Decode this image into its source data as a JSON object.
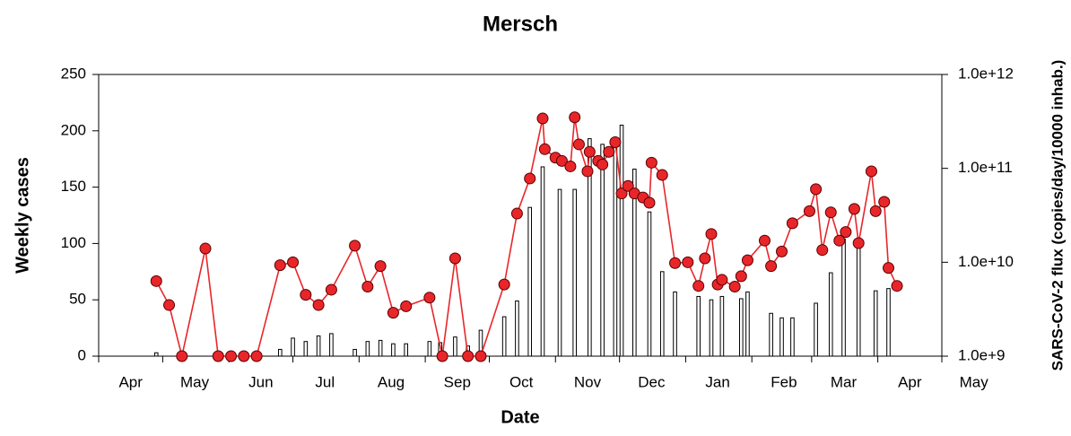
{
  "chart_data": {
    "type": "combo",
    "title": "Mersch",
    "xlabel": "Date",
    "ylabel": "Weekly cases",
    "y2label": "SARS-CoV-2 flux (copies/day/10000 inhab.)",
    "xlim": [
      0,
      395
    ],
    "xticks": [
      {
        "value": 15,
        "label": "Apr"
      },
      {
        "value": 45,
        "label": "May"
      },
      {
        "value": 76,
        "label": "Jun"
      },
      {
        "value": 106,
        "label": "Jul"
      },
      {
        "value": 137,
        "label": "Aug"
      },
      {
        "value": 168,
        "label": "Sep"
      },
      {
        "value": 198,
        "label": "Oct"
      },
      {
        "value": 229,
        "label": "Nov"
      },
      {
        "value": 259,
        "label": "Dec"
      },
      {
        "value": 290,
        "label": "Jan"
      },
      {
        "value": 321,
        "label": "Feb"
      },
      {
        "value": 349,
        "label": "Mar"
      },
      {
        "value": 380,
        "label": "Apr"
      },
      {
        "value": 410,
        "label": "May"
      }
    ],
    "xminorticks": [
      0,
      30,
      61,
      91,
      122,
      153,
      183,
      214,
      244,
      275,
      306,
      334,
      365,
      395
    ],
    "ylim": [
      0,
      250
    ],
    "yticks": [
      0,
      50,
      100,
      150,
      200,
      250
    ],
    "y2lim": [
      1000000000.0,
      1000000000000.0
    ],
    "y2scale": "log",
    "y2ticks": [
      {
        "value": 1000000000.0,
        "label": "1.0e+9"
      },
      {
        "value": 10000000000.0,
        "label": "1.0e+10"
      },
      {
        "value": 100000000000.0,
        "label": "1.0e+11"
      },
      {
        "value": 1000000000000.0,
        "label": "1.0e+12"
      }
    ],
    "series": [
      {
        "type": "bar",
        "color": "#ffffff",
        "x": [
          27,
          85,
          91,
          97,
          103,
          109,
          120,
          126,
          132,
          138,
          144,
          155,
          160,
          167,
          173,
          179,
          190,
          196,
          202,
          208,
          216,
          223,
          230,
          236,
          242,
          245,
          251,
          258,
          264,
          270,
          281,
          287,
          292,
          301,
          304,
          315,
          320,
          325,
          336,
          343,
          349,
          356,
          364,
          370
        ],
        "values": [
          3,
          6,
          16,
          13,
          18,
          20,
          6,
          13,
          14,
          11,
          11,
          13,
          12,
          17,
          9,
          23,
          35,
          49,
          132,
          168,
          148,
          148,
          193,
          188,
          190,
          205,
          166,
          128,
          75,
          57,
          53,
          50,
          53,
          51,
          57,
          38,
          34,
          34,
          47,
          74,
          104,
          100,
          58,
          60
        ]
      },
      {
        "type": "line",
        "axis": "y2",
        "color": "#e8262a",
        "x": [
          27,
          33,
          39,
          50,
          56,
          62,
          68,
          74,
          85,
          91,
          97,
          103,
          109,
          120,
          126,
          132,
          138,
          144,
          155,
          161,
          167,
          173,
          179,
          190,
          196,
          202,
          208,
          209,
          214,
          217,
          221,
          223,
          225,
          229,
          230,
          234,
          236,
          239,
          242,
          245,
          248,
          251,
          255,
          258,
          259,
          264,
          270,
          276,
          281,
          284,
          287,
          290,
          292,
          298,
          301,
          304,
          312,
          315,
          320,
          325,
          333,
          336,
          339,
          343,
          347,
          350,
          354,
          356,
          362,
          364,
          368,
          370,
          374
        ],
        "values": [
          6300000000.0,
          3500000000.0,
          1000000000.0,
          14000000000.0,
          1000000000.0,
          1000000000.0,
          1000000000.0,
          1000000000.0,
          9300000000.0,
          10000000000.0,
          4500000000.0,
          3500000000.0,
          5100000000.0,
          15000000000.0,
          5500000000.0,
          9100000000.0,
          2900000000.0,
          3400000000.0,
          4200000000.0,
          1000000000.0,
          11000000000.0,
          1000000000.0,
          1000000000.0,
          5800000000.0,
          33000000000.0,
          78000000000.0,
          340000000000.0,
          160000000000.0,
          130000000000.0,
          120000000000.0,
          105000000000.0,
          350000000000.0,
          180000000000.0,
          93000000000.0,
          150000000000.0,
          120000000000.0,
          110000000000.0,
          150000000000.0,
          190000000000.0,
          54000000000.0,
          65000000000.0,
          54000000000.0,
          49000000000.0,
          43000000000.0,
          115000000000.0,
          85000000000.0,
          9800000000.0,
          10000000000.0,
          5600000000.0,
          11000000000.0,
          20000000000.0,
          5800000000.0,
          6500000000.0,
          5500000000.0,
          7100000000.0,
          10500000000.0,
          17000000000.0,
          9100000000.0,
          13000000000.0,
          26000000000.0,
          35000000000.0,
          60000000000.0,
          13500000000.0,
          34000000000.0,
          17000000000.0,
          21000000000.0,
          37000000000.0,
          16000000000.0,
          93000000000.0,
          35000000000.0,
          44000000000.0,
          8700000000.0,
          5600000000.0
        ]
      }
    ]
  }
}
